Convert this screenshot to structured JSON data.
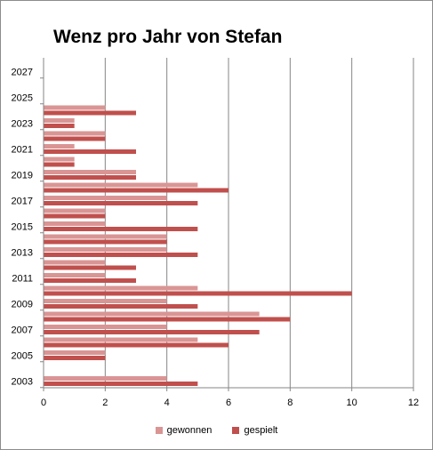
{
  "chart_data": {
    "type": "bar",
    "orientation": "horizontal",
    "title": "Wenz pro Jahr von Stefan",
    "xlabel": "",
    "ylabel": "",
    "xlim": [
      0,
      12
    ],
    "x_ticks": [
      "0",
      "2",
      "4",
      "6",
      "8",
      "10",
      "12"
    ],
    "y_tick_labels": [
      "2003",
      "2005",
      "2007",
      "2009",
      "2011",
      "2013",
      "2015",
      "2017",
      "2019",
      "2021",
      "2023",
      "2025",
      "2027"
    ],
    "grid": "vertical",
    "legend_position": "bottom",
    "categories": [
      2003,
      2004,
      2005,
      2006,
      2007,
      2008,
      2009,
      2010,
      2011,
      2012,
      2013,
      2014,
      2015,
      2016,
      2017,
      2018,
      2019,
      2020,
      2021,
      2022,
      2023,
      2024,
      2025,
      2026,
      2027
    ],
    "series": [
      {
        "name": "gewonnen",
        "color": "#d99594",
        "values": [
          4,
          null,
          2,
          5,
          4,
          7,
          4,
          5,
          2,
          2,
          4,
          4,
          2,
          2,
          4,
          5,
          3,
          1,
          1,
          2,
          1,
          2,
          null,
          null,
          null
        ]
      },
      {
        "name": "gespielt",
        "color": "#c0504d",
        "values": [
          5,
          null,
          2,
          6,
          7,
          8,
          5,
          10,
          3,
          3,
          5,
          4,
          5,
          2,
          5,
          6,
          3,
          1,
          3,
          2,
          1,
          3,
          null,
          null,
          null
        ]
      }
    ]
  }
}
